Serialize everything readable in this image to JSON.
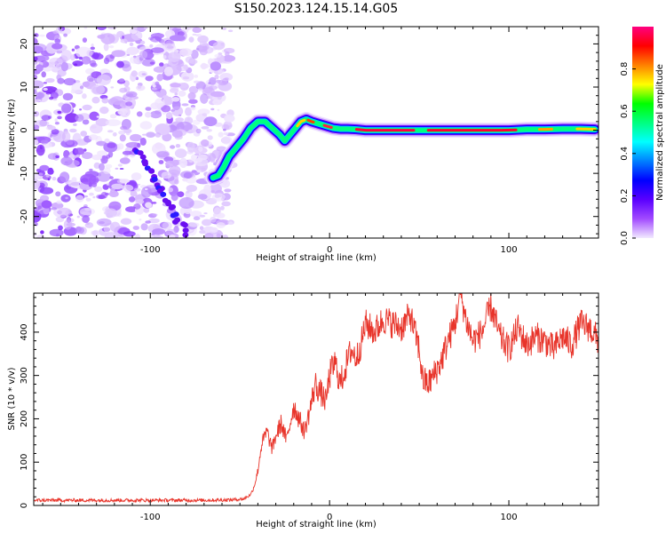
{
  "title": "S150.2023.124.15.14.G05",
  "chart_data": [
    {
      "type": "heatmap",
      "name": "spectrogram",
      "xlabel": "Height of straight line (km)",
      "ylabel": "Frequency (Hz)",
      "xlim": [
        -165,
        150
      ],
      "ylim": [
        -25,
        24
      ],
      "xticks": [
        -100,
        0,
        100
      ],
      "yticks": [
        -20,
        -10,
        0,
        10,
        20
      ],
      "colorbar": {
        "label": "Normalized spectral amplitude",
        "range": [
          0,
          1
        ],
        "ticks": [
          0.0,
          0.2,
          0.4,
          0.6,
          0.8
        ],
        "tick_labels": [
          "0.0",
          "0.2",
          "0.4",
          "0.6",
          "0.8"
        ],
        "colors": [
          "#f2eaff",
          "#a24bff",
          "#5a00ff",
          "#0000ff",
          "#0080ff",
          "#00ffff",
          "#00ff80",
          "#00ff00",
          "#ffff00",
          "#ff8000",
          "#ff0000",
          "#ff0080"
        ]
      },
      "noise_region_x": [
        -165,
        -55
      ],
      "diagonal_trace": {
        "x": [
          -108,
          -80
        ],
        "y": [
          -4,
          -24
        ]
      },
      "main_trace": {
        "x": [
          -65,
          -62,
          -59,
          -56,
          -52,
          -48,
          -44,
          -40,
          -36,
          -32,
          -28,
          -25,
          -22,
          -19,
          -16,
          -13,
          -10,
          -6,
          -2,
          2,
          6,
          10,
          15,
          20,
          30,
          40,
          50,
          60,
          70,
          80,
          90,
          100,
          110,
          120,
          130,
          140,
          148
        ],
        "y": [
          -11,
          -10.5,
          -8.5,
          -6,
          -4,
          -2,
          0.5,
          2,
          2,
          0.5,
          -1,
          -2.5,
          -1,
          0.5,
          2,
          2.5,
          2,
          1.5,
          1,
          0.5,
          0.3,
          0.3,
          0.2,
          0,
          0,
          0,
          0,
          0,
          0,
          0,
          0,
          0,
          0.2,
          0.2,
          0.3,
          0.3,
          0.2
        ]
      }
    },
    {
      "type": "line",
      "name": "snr",
      "xlabel": "Height of straight line (km)",
      "ylabel": "SNR (10 * v/v)",
      "xlim": [
        -165,
        150
      ],
      "ylim": [
        0,
        490
      ],
      "xticks": [
        -100,
        0,
        100
      ],
      "yticks": [
        0,
        100,
        200,
        300,
        400
      ],
      "color": "#e8342a",
      "series": [
        {
          "name": "SNR",
          "x": [
            -165,
            -150,
            -130,
            -110,
            -90,
            -70,
            -55,
            -48,
            -44,
            -42,
            -40,
            -38,
            -35,
            -32,
            -30,
            -27,
            -24,
            -20,
            -17,
            -14,
            -11,
            -8,
            -5,
            -2,
            0,
            3,
            6,
            9,
            12,
            15,
            18,
            20,
            25,
            30,
            35,
            40,
            45,
            50,
            52,
            55,
            58,
            62,
            66,
            70,
            73,
            76,
            80,
            85,
            90,
            95,
            100,
            105,
            110,
            115,
            120,
            125,
            130,
            135,
            140,
            145,
            150
          ],
          "y": [
            12,
            12,
            12,
            12,
            12,
            12,
            13,
            15,
            25,
            45,
            80,
            140,
            170,
            130,
            160,
            190,
            150,
            230,
            200,
            170,
            220,
            280,
            260,
            240,
            300,
            330,
            280,
            320,
            360,
            340,
            380,
            420,
            400,
            430,
            420,
            410,
            440,
            360,
            290,
            280,
            300,
            330,
            380,
            420,
            490,
            430,
            380,
            400,
            460,
            390,
            360,
            410,
            370,
            390,
            380,
            360,
            390,
            370,
            420,
            410,
            380
          ]
        }
      ]
    }
  ]
}
